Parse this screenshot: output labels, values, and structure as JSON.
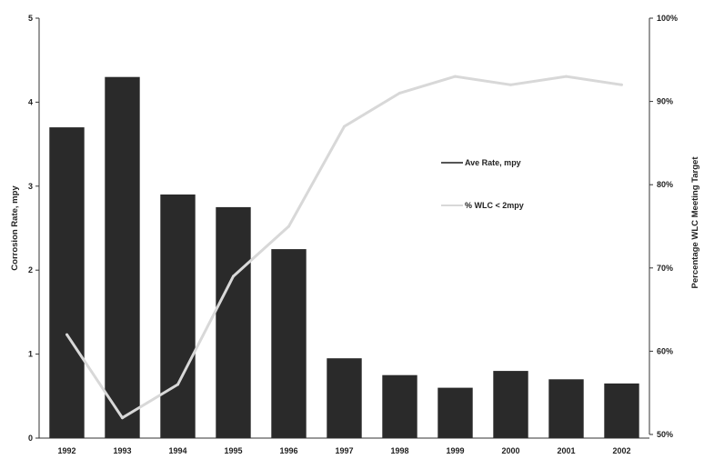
{
  "chart_data": {
    "type": "bar",
    "categories": [
      "1992",
      "1993",
      "1994",
      "1995",
      "1996",
      "1997",
      "1998",
      "1999",
      "2000",
      "2001",
      "2002"
    ],
    "series": [
      {
        "name": "Ave Rate, mpy",
        "type": "bar",
        "axis": "left",
        "values": [
          3.7,
          4.3,
          2.9,
          2.75,
          2.25,
          0.95,
          0.75,
          0.6,
          0.8,
          0.7,
          0.65
        ]
      },
      {
        "name": "% WLC < 2mpy",
        "type": "line",
        "axis": "right",
        "values": [
          62,
          52,
          56,
          69,
          75,
          87,
          91,
          93,
          92,
          93,
          92
        ]
      }
    ],
    "xlabel": "",
    "ylabel": "Corrosion Rate, mpy",
    "y2label": "Percentage WLC Meeting Target",
    "ylim": [
      0,
      5
    ],
    "yticks": [
      "0",
      "1",
      "2",
      "3",
      "4",
      "5"
    ],
    "y2lim": [
      50,
      100
    ],
    "y2ticks": [
      "50%",
      "60%",
      "70%",
      "80%",
      "90%",
      "100%"
    ],
    "legend": "right-middle",
    "grid": false,
    "colors": {
      "bar": "#2a2a2a",
      "line": "#d8d8d8"
    }
  }
}
